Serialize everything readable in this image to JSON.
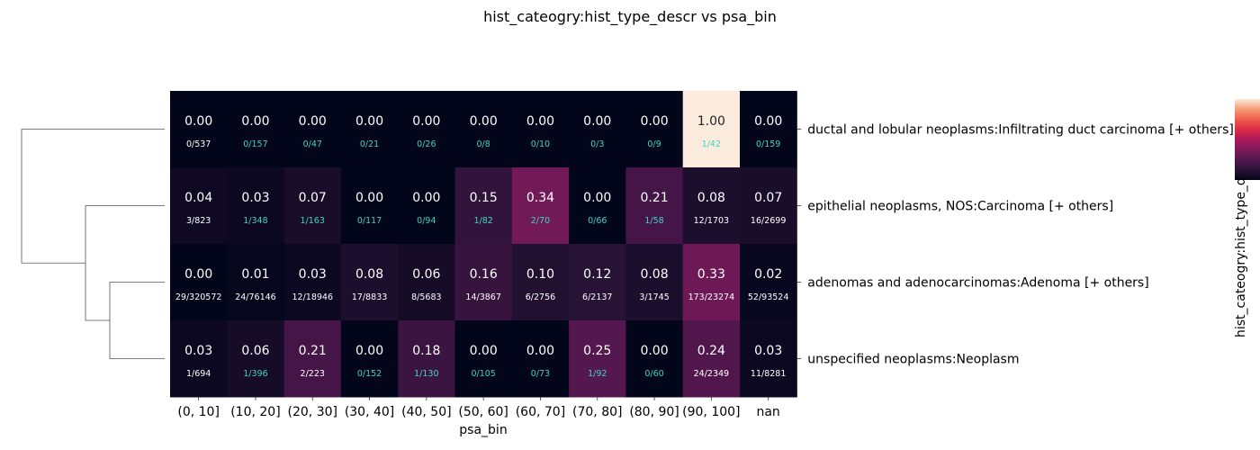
{
  "chart_data": {
    "type": "heatmap",
    "title": "hist_cateogry:hist_type_descr vs psa_bin",
    "xlabel": "psa_bin",
    "colorbar_label": "hist_cateogry:hist_type_d",
    "x_categories": [
      "(0, 10]",
      "(10, 20]",
      "(20, 30]",
      "(30, 40]",
      "(40, 50]",
      "(50, 60]",
      "(60, 70]",
      "(70, 80]",
      "(80, 90]",
      "(90, 100]",
      "nan"
    ],
    "y_categories": [
      "ductal and lobular neoplasms:Infiltrating duct carcinoma [+ others]",
      "epithelial neoplasms, NOS:Carcinoma [+ others]",
      "adenomas and adenocarcinomas:Adenoma [+ others]",
      "unspecified neoplasms:Neoplasm"
    ],
    "values": [
      [
        0.0,
        0.0,
        0.0,
        0.0,
        0.0,
        0.0,
        0.0,
        0.0,
        0.0,
        1.0,
        0.0
      ],
      [
        0.04,
        0.03,
        0.07,
        0.0,
        0.0,
        0.15,
        0.34,
        0.0,
        0.21,
        0.08,
        0.07
      ],
      [
        0.0,
        0.01,
        0.03,
        0.08,
        0.06,
        0.16,
        0.1,
        0.12,
        0.08,
        0.33,
        0.02
      ],
      [
        0.03,
        0.06,
        0.21,
        0.0,
        0.18,
        0.0,
        0.0,
        0.25,
        0.0,
        0.24,
        0.03
      ]
    ],
    "value_labels": [
      [
        "0.00",
        "0.00",
        "0.00",
        "0.00",
        "0.00",
        "0.00",
        "0.00",
        "0.00",
        "0.00",
        "1.00",
        "0.00"
      ],
      [
        "0.04",
        "0.03",
        "0.07",
        "0.00",
        "0.00",
        "0.15",
        "0.34",
        "0.00",
        "0.21",
        "0.08",
        "0.07"
      ],
      [
        "0.00",
        "0.01",
        "0.03",
        "0.08",
        "0.06",
        "0.16",
        "0.10",
        "0.12",
        "0.08",
        "0.33",
        "0.02"
      ],
      [
        "0.03",
        "0.06",
        "0.21",
        "0.00",
        "0.18",
        "0.00",
        "0.00",
        "0.25",
        "0.00",
        "0.24",
        "0.03"
      ]
    ],
    "counts": [
      [
        "0/537",
        "0/157",
        "0/47",
        "0/21",
        "0/26",
        "0/8",
        "0/10",
        "0/3",
        "0/9",
        "1/42",
        "0/159"
      ],
      [
        "3/823",
        "1/348",
        "1/163",
        "0/117",
        "0/94",
        "1/82",
        "2/70",
        "0/66",
        "1/58",
        "12/1703",
        "16/2699"
      ],
      [
        "29/320572",
        "24/76146",
        "12/18946",
        "17/8833",
        "8/5683",
        "14/3867",
        "6/2756",
        "6/2137",
        "3/1745",
        "173/23274",
        "52/93524"
      ],
      [
        "1/694",
        "1/396",
        "2/223",
        "0/152",
        "1/130",
        "0/105",
        "0/73",
        "1/92",
        "0/60",
        "24/2349",
        "11/8281"
      ]
    ],
    "count_highlight": [
      [
        false,
        true,
        true,
        true,
        true,
        true,
        true,
        true,
        true,
        true,
        true
      ],
      [
        false,
        true,
        true,
        true,
        true,
        true,
        true,
        true,
        true,
        false,
        false
      ],
      [
        false,
        false,
        false,
        false,
        false,
        false,
        false,
        false,
        false,
        false,
        false
      ],
      [
        false,
        true,
        false,
        true,
        true,
        true,
        true,
        true,
        true,
        false,
        false
      ]
    ],
    "value_range": [
      0,
      1
    ],
    "colormap": "rocket",
    "highlight_color": "#3fd4c0",
    "dendrogram_side": "left"
  }
}
